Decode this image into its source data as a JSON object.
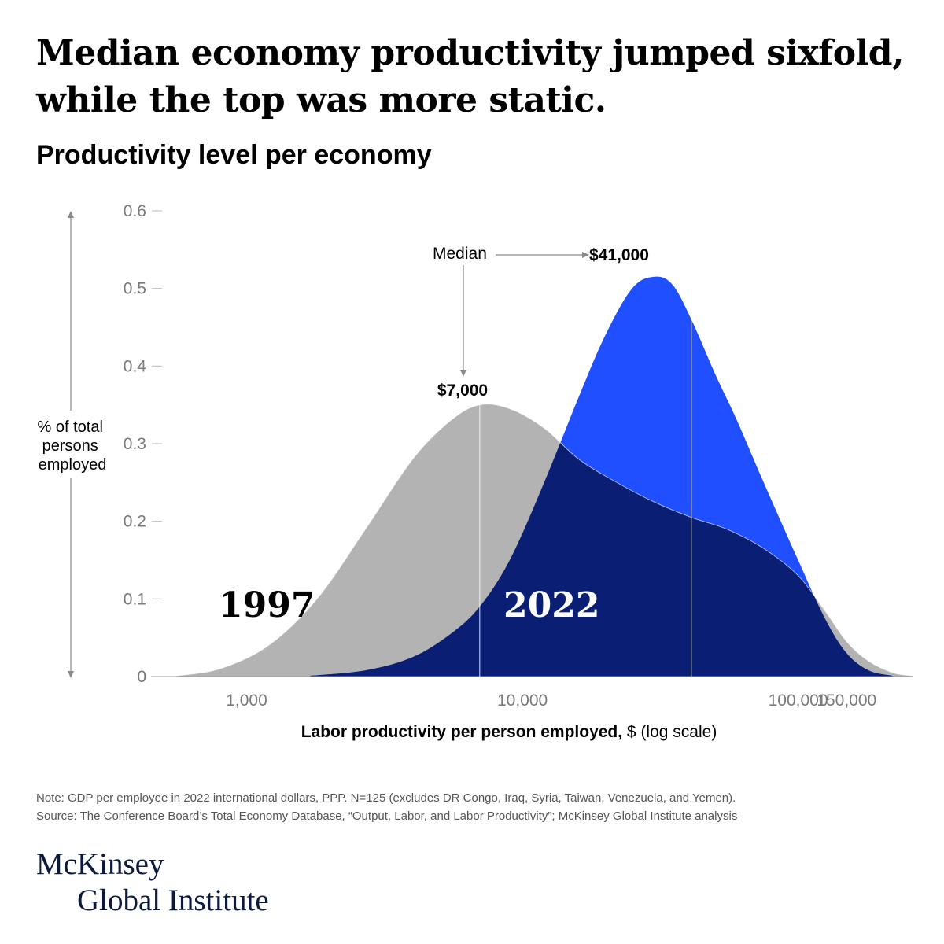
{
  "headline": "Median economy productivity jumped sixfold, while the top was more static.",
  "subtitle": "Productivity level per economy",
  "chart_data": {
    "type": "area",
    "title": "Productivity level per economy",
    "ylabel_lines": [
      "% of total",
      "persons",
      "employed"
    ],
    "xlabel_bold": "Labor productivity per person employed,",
    "xlabel_rest": " $ (log scale)",
    "x_scale": "log",
    "xlim": [
      450,
      260000
    ],
    "ylim": [
      0,
      0.6
    ],
    "y_ticks": [
      0,
      0.1,
      0.2,
      0.3,
      0.4,
      0.5,
      0.6
    ],
    "y_tick_labels": [
      "0",
      "0.1",
      "0.2",
      "0.3",
      "0.4",
      "0.5",
      "0.6"
    ],
    "x_ticks": [
      1000,
      10000,
      100000,
      150000
    ],
    "x_tick_labels": [
      "1,000",
      "10,000",
      "100,000",
      "150,000"
    ],
    "grid": false,
    "series": [
      {
        "name": "1997",
        "color": "#b3b3b3",
        "x": [
          560,
          800,
          1200,
          1800,
          2700,
          4000,
          5500,
          7000,
          9000,
          12000,
          16000,
          22000,
          30000,
          41000,
          55000,
          75000,
          100000,
          125000,
          150000,
          180000,
          220000,
          260000
        ],
        "y": [
          0.001,
          0.01,
          0.04,
          0.1,
          0.19,
          0.28,
          0.33,
          0.35,
          0.345,
          0.32,
          0.28,
          0.25,
          0.225,
          0.205,
          0.19,
          0.165,
          0.13,
          0.085,
          0.045,
          0.02,
          0.005,
          0.001
        ]
      },
      {
        "name": "2022",
        "color": "#1f4fff",
        "overlap_color": "#0a1f73",
        "x": [
          1700,
          2700,
          4000,
          5500,
          7000,
          9000,
          12000,
          16000,
          20000,
          25000,
          30000,
          35000,
          41000,
          50000,
          60000,
          75000,
          100000,
          125000,
          150000,
          180000,
          220000
        ],
        "y": [
          0.001,
          0.008,
          0.025,
          0.055,
          0.09,
          0.15,
          0.25,
          0.36,
          0.44,
          0.5,
          0.515,
          0.505,
          0.46,
          0.39,
          0.33,
          0.25,
          0.15,
          0.075,
          0.03,
          0.008,
          0.001
        ]
      }
    ],
    "medians": [
      {
        "series": "1997",
        "x": 7000,
        "label": "$7,000"
      },
      {
        "series": "2022",
        "x": 41000,
        "label": "$41,000"
      }
    ],
    "annotation": "Median",
    "year_labels": [
      "1997",
      "2022"
    ]
  },
  "note": "Note: GDP per employee in 2022 international dollars, PPP. N=125 (excludes DR Congo, Iraq, Syria, Taiwan, Venezuela, and Yemen).",
  "source": "Source: The Conference Board’s Total Economy Database, “Output, Labor, and Labor Productivity”; McKinsey Global Institute analysis",
  "logo": {
    "line1": "McKinsey",
    "line2": "Global Institute"
  }
}
